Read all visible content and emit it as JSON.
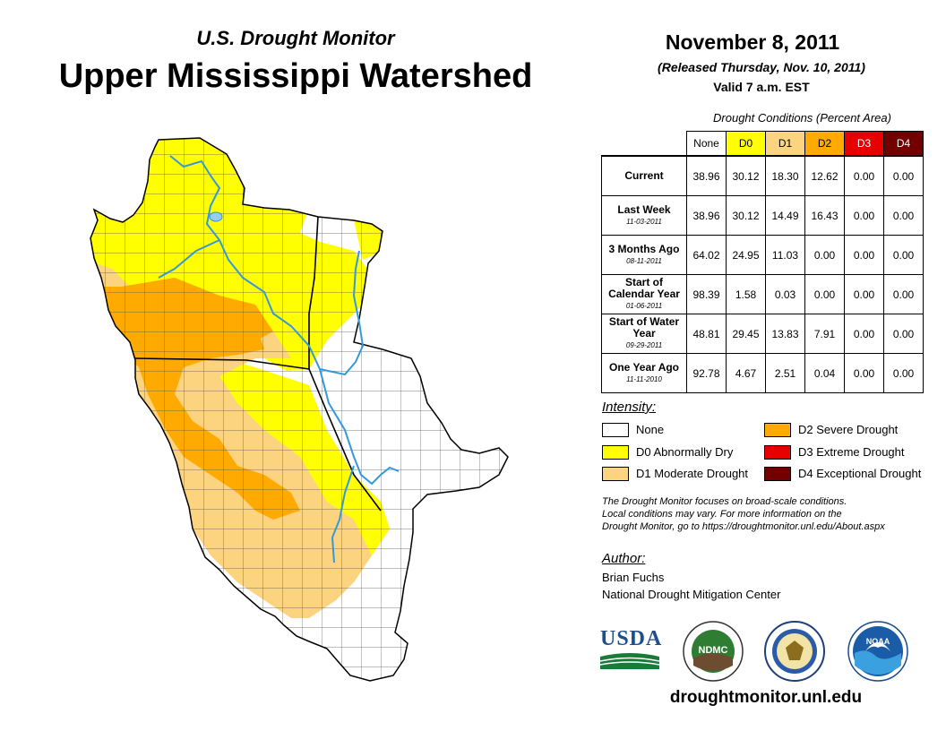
{
  "header": {
    "subtitle": "U.S. Drought Monitor",
    "title": "Upper Mississippi Watershed",
    "date": "November 8, 2011",
    "released": "(Released Thursday, Nov. 10, 2011)",
    "valid": "Valid 7 a.m. EST"
  },
  "table": {
    "caption": "Drought Conditions (Percent Area)",
    "columns": [
      "None",
      "D0",
      "D1",
      "D2",
      "D3",
      "D4"
    ],
    "column_colors": [
      "#ffffff",
      "#ffff00",
      "#fcd37f",
      "#ffaa00",
      "#e60000",
      "#730000"
    ],
    "rows": [
      {
        "label": "Current",
        "date": "",
        "values": [
          "38.96",
          "30.12",
          "18.30",
          "12.62",
          "0.00",
          "0.00"
        ]
      },
      {
        "label": "Last Week",
        "date": "11-03-2011",
        "values": [
          "38.96",
          "30.12",
          "14.49",
          "16.43",
          "0.00",
          "0.00"
        ]
      },
      {
        "label": "3 Months Ago",
        "date": "08-11-2011",
        "values": [
          "64.02",
          "24.95",
          "11.03",
          "0.00",
          "0.00",
          "0.00"
        ]
      },
      {
        "label": "Start of Calendar Year",
        "date": "01-06-2011",
        "values": [
          "98.39",
          "1.58",
          "0.03",
          "0.00",
          "0.00",
          "0.00"
        ]
      },
      {
        "label": "Start of Water Year",
        "date": "09-29-2011",
        "values": [
          "48.81",
          "29.45",
          "13.83",
          "7.91",
          "0.00",
          "0.00"
        ]
      },
      {
        "label": "One Year Ago",
        "date": "11-11-2010",
        "values": [
          "92.78",
          "4.67",
          "2.51",
          "0.04",
          "0.00",
          "0.00"
        ]
      }
    ]
  },
  "legend": {
    "title": "Intensity:",
    "items": [
      {
        "label": "None",
        "color": "#ffffff"
      },
      {
        "label": "D0 Abnormally Dry",
        "color": "#ffff00"
      },
      {
        "label": "D1 Moderate Drought",
        "color": "#fcd37f"
      },
      {
        "label": "D2 Severe Drought",
        "color": "#ffaa00"
      },
      {
        "label": "D3 Extreme Drought",
        "color": "#e60000"
      },
      {
        "label": "D4 Exceptional Drought",
        "color": "#730000"
      }
    ]
  },
  "note": {
    "line1": "The Drought Monitor focuses on broad-scale conditions.",
    "line2": "Local conditions may vary. For more information on the",
    "line3": "Drought Monitor, go to https://droughtmonitor.unl.edu/About.aspx"
  },
  "author": {
    "title": "Author:",
    "name": "Brian Fuchs",
    "org": "National Drought Mitigation Center"
  },
  "logos": {
    "usda": "USDA",
    "ndmc": "NDMC",
    "noaa": "NOAA"
  },
  "footer": {
    "url": "droughtmonitor.unl.edu"
  },
  "map": {
    "river_color": "#3399dd",
    "border_color": "#666666"
  }
}
